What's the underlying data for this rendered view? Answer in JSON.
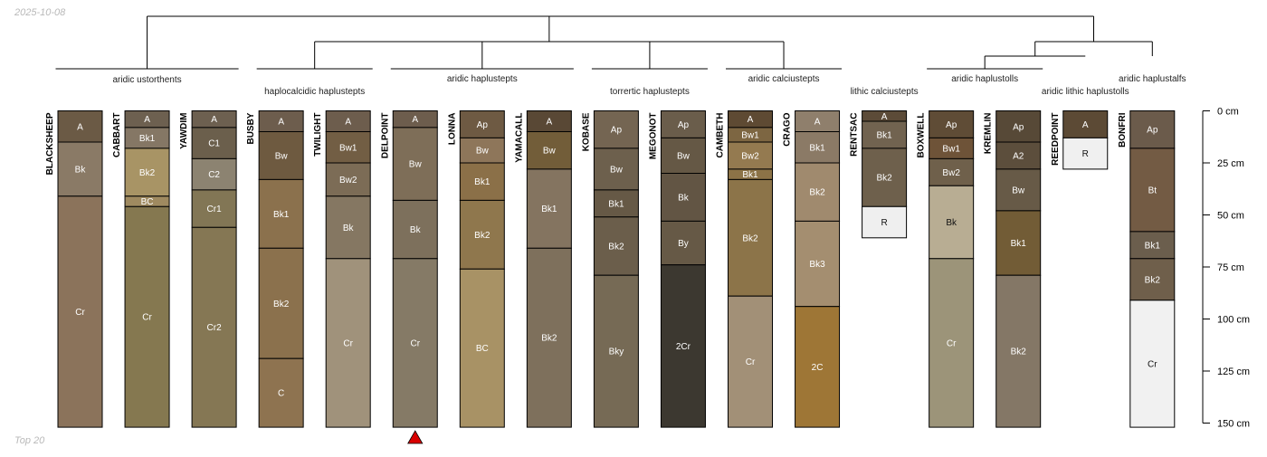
{
  "date_label": "2025-10-08",
  "footer_label": "Top 20",
  "depth_axis": {
    "unit": "cm",
    "max": 150,
    "ticks": [
      {
        "value": 0,
        "label": "0 cm"
      },
      {
        "value": 25,
        "label": "25 cm"
      },
      {
        "value": 50,
        "label": "50 cm"
      },
      {
        "value": 75,
        "label": "75 cm"
      },
      {
        "value": 100,
        "label": "100 cm"
      },
      {
        "value": 125,
        "label": "125 cm"
      },
      {
        "value": 150,
        "label": "150 cm"
      }
    ]
  },
  "marker": {
    "profile_index": 5,
    "shape": "triangle-up",
    "color": "#d90000"
  },
  "groups": [
    {
      "label": "aridic ustorthents",
      "members": [
        0,
        1,
        2
      ]
    },
    {
      "label": "haplocalcidic haplustepts",
      "members": [
        3,
        4
      ]
    },
    {
      "label": "aridic haplustepts",
      "members": [
        5,
        6,
        7
      ]
    },
    {
      "label": "torrertic haplustepts",
      "members": [
        8,
        9
      ]
    },
    {
      "label": "aridic calciustepts",
      "members": [
        10,
        11
      ]
    },
    {
      "label": "lithic calciustepts",
      "members": [
        12
      ]
    },
    {
      "label": "aridic haplustolls",
      "members": [
        13,
        14
      ]
    },
    {
      "label": "aridic lithic haplustolls",
      "members": [
        15
      ]
    },
    {
      "label": "aridic haplustalfs",
      "members": [
        16
      ]
    }
  ],
  "profiles": [
    {
      "name": "BLACKSHEEP",
      "horizons": [
        {
          "name": "A",
          "top": 0,
          "bottom": 15,
          "color": "#6b5a45"
        },
        {
          "name": "Bk",
          "top": 15,
          "bottom": 41,
          "color": "#8a7a66"
        },
        {
          "name": "Cr",
          "top": 41,
          "bottom": 152,
          "color": "#8b735b"
        }
      ]
    },
    {
      "name": "CABBART",
      "horizons": [
        {
          "name": "A",
          "top": 0,
          "bottom": 8,
          "color": "#6d6050"
        },
        {
          "name": "Bk1",
          "top": 8,
          "bottom": 18,
          "color": "#857765"
        },
        {
          "name": "Bk2",
          "top": 18,
          "bottom": 41,
          "color": "#a89465"
        },
        {
          "name": "BC",
          "top": 41,
          "bottom": 46,
          "color": "#9f8a60"
        },
        {
          "name": "Cr",
          "top": 46,
          "bottom": 152,
          "color": "#857850"
        }
      ]
    },
    {
      "name": "YAWDIM",
      "horizons": [
        {
          "name": "A",
          "top": 0,
          "bottom": 8,
          "color": "#6d6050"
        },
        {
          "name": "C1",
          "top": 8,
          "bottom": 23,
          "color": "#6b5f4c"
        },
        {
          "name": "C2",
          "top": 23,
          "bottom": 38,
          "color": "#8c8371"
        },
        {
          "name": "Cr1",
          "top": 38,
          "bottom": 56,
          "color": "#827655"
        },
        {
          "name": "Cr2",
          "top": 56,
          "bottom": 152,
          "color": "#857754"
        }
      ]
    },
    {
      "name": "BUSBY",
      "horizons": [
        {
          "name": "A",
          "top": 0,
          "bottom": 10,
          "color": "#6d5d4d"
        },
        {
          "name": "Bw",
          "top": 10,
          "bottom": 33,
          "color": "#6e5a40"
        },
        {
          "name": "Bk1",
          "top": 33,
          "bottom": 66,
          "color": "#8b714d"
        },
        {
          "name": "Bk2",
          "top": 66,
          "bottom": 119,
          "color": "#8b714d"
        },
        {
          "name": "C",
          "top": 119,
          "bottom": 152,
          "color": "#8e7350"
        }
      ]
    },
    {
      "name": "TWILIGHT",
      "horizons": [
        {
          "name": "A",
          "top": 0,
          "bottom": 10,
          "color": "#6d5d4d"
        },
        {
          "name": "Bw1",
          "top": 10,
          "bottom": 25,
          "color": "#725e44"
        },
        {
          "name": "Bw2",
          "top": 25,
          "bottom": 41,
          "color": "#7c6c56"
        },
        {
          "name": "Bk",
          "top": 41,
          "bottom": 71,
          "color": "#857762"
        },
        {
          "name": "Cr",
          "top": 71,
          "bottom": 152,
          "color": "#a0927b"
        }
      ]
    },
    {
      "name": "DELPOINT",
      "horizons": [
        {
          "name": "A",
          "top": 0,
          "bottom": 8,
          "color": "#6d5d4d"
        },
        {
          "name": "Bw",
          "top": 8,
          "bottom": 43,
          "color": "#7e6e58"
        },
        {
          "name": "Bk",
          "top": 43,
          "bottom": 71,
          "color": "#7d705c"
        },
        {
          "name": "Cr",
          "top": 71,
          "bottom": 152,
          "color": "#857a66"
        }
      ]
    },
    {
      "name": "LONNA",
      "horizons": [
        {
          "name": "Ap",
          "top": 0,
          "bottom": 13,
          "color": "#6e5a43"
        },
        {
          "name": "Bw",
          "top": 13,
          "bottom": 25,
          "color": "#8e765a"
        },
        {
          "name": "Bk1",
          "top": 25,
          "bottom": 43,
          "color": "#8b7048"
        },
        {
          "name": "Bk2",
          "top": 43,
          "bottom": 76,
          "color": "#8f774d"
        },
        {
          "name": "BC",
          "top": 76,
          "bottom": 152,
          "color": "#a89265"
        }
      ]
    },
    {
      "name": "YAMACALL",
      "horizons": [
        {
          "name": "A",
          "top": 0,
          "bottom": 10,
          "color": "#594835"
        },
        {
          "name": "Bw",
          "top": 10,
          "bottom": 28,
          "color": "#725d39"
        },
        {
          "name": "Bk1",
          "top": 28,
          "bottom": 66,
          "color": "#847460"
        },
        {
          "name": "Bk2",
          "top": 66,
          "bottom": 152,
          "color": "#7e705c"
        }
      ]
    },
    {
      "name": "KOBASE",
      "horizons": [
        {
          "name": "Ap",
          "top": 0,
          "bottom": 18,
          "color": "#746552"
        },
        {
          "name": "Bw",
          "top": 18,
          "bottom": 38,
          "color": "#6d604d"
        },
        {
          "name": "Bk1",
          "top": 38,
          "bottom": 51,
          "color": "#665946"
        },
        {
          "name": "Bk2",
          "top": 51,
          "bottom": 79,
          "color": "#6b5e4b"
        },
        {
          "name": "Bky",
          "top": 79,
          "bottom": 152,
          "color": "#766a55"
        }
      ]
    },
    {
      "name": "MEGONOT",
      "horizons": [
        {
          "name": "Ap",
          "top": 0,
          "bottom": 13,
          "color": "#6a5d4b"
        },
        {
          "name": "Bw",
          "top": 13,
          "bottom": 30,
          "color": "#655845"
        },
        {
          "name": "Bk",
          "top": 30,
          "bottom": 53,
          "color": "#625544"
        },
        {
          "name": "By",
          "top": 53,
          "bottom": 74,
          "color": "#665946"
        },
        {
          "name": "2Cr",
          "top": 74,
          "bottom": 152,
          "color": "#3c3830"
        }
      ]
    },
    {
      "name": "CAMBETH",
      "horizons": [
        {
          "name": "A",
          "top": 0,
          "bottom": 8,
          "color": "#5e4a33"
        },
        {
          "name": "Bw1",
          "top": 8,
          "bottom": 15,
          "color": "#7d6642"
        },
        {
          "name": "Bw2",
          "top": 15,
          "bottom": 28,
          "color": "#947a50"
        },
        {
          "name": "Bk1",
          "top": 28,
          "bottom": 33,
          "color": "#8c7347"
        },
        {
          "name": "Bk2",
          "top": 33,
          "bottom": 89,
          "color": "#8c7449"
        },
        {
          "name": "Cr",
          "top": 89,
          "bottom": 152,
          "color": "#a29077"
        }
      ]
    },
    {
      "name": "CRAGO",
      "horizons": [
        {
          "name": "A",
          "top": 0,
          "bottom": 10,
          "color": "#8f7f6c"
        },
        {
          "name": "Bk1",
          "top": 10,
          "bottom": 25,
          "color": "#8b7a66"
        },
        {
          "name": "Bk2",
          "top": 25,
          "bottom": 53,
          "color": "#a08a6e"
        },
        {
          "name": "Bk3",
          "top": 53,
          "bottom": 94,
          "color": "#a48e70"
        },
        {
          "name": "2C",
          "top": 94,
          "bottom": 152,
          "color": "#9e7636"
        }
      ]
    },
    {
      "name": "RENTSAC",
      "horizons": [
        {
          "name": "A",
          "top": 0,
          "bottom": 5,
          "color": "#5c4b38"
        },
        {
          "name": "Bk1",
          "top": 5,
          "bottom": 18,
          "color": "#716350"
        },
        {
          "name": "Bk2",
          "top": 18,
          "bottom": 46,
          "color": "#6e604c"
        },
        {
          "name": "R",
          "top": 46,
          "bottom": 61,
          "color": "#efefef"
        }
      ]
    },
    {
      "name": "BOXWELL",
      "horizons": [
        {
          "name": "Ap",
          "top": 0,
          "bottom": 13,
          "color": "#5f4c36"
        },
        {
          "name": "Bw1",
          "top": 13,
          "bottom": 23,
          "color": "#6e5338"
        },
        {
          "name": "Bw2",
          "top": 23,
          "bottom": 36,
          "color": "#6f604b"
        },
        {
          "name": "Bk",
          "top": 36,
          "bottom": 71,
          "color": "#b8ad93"
        },
        {
          "name": "Cr",
          "top": 71,
          "bottom": 152,
          "color": "#9c9479"
        }
      ]
    },
    {
      "name": "KREMLIN",
      "horizons": [
        {
          "name": "Ap",
          "top": 0,
          "bottom": 15,
          "color": "#574937"
        },
        {
          "name": "A2",
          "top": 15,
          "bottom": 28,
          "color": "#5c4e3c"
        },
        {
          "name": "Bw",
          "top": 28,
          "bottom": 48,
          "color": "#675a47"
        },
        {
          "name": "Bk1",
          "top": 48,
          "bottom": 79,
          "color": "#725c36"
        },
        {
          "name": "Bk2",
          "top": 79,
          "bottom": 152,
          "color": "#847766"
        }
      ]
    },
    {
      "name": "REEDPOINT",
      "horizons": [
        {
          "name": "A",
          "top": 0,
          "bottom": 13,
          "color": "#5c4a35"
        },
        {
          "name": "R",
          "top": 13,
          "bottom": 28,
          "color": "#f0f0f0"
        }
      ]
    },
    {
      "name": "BONFRI",
      "horizons": [
        {
          "name": "Ap",
          "top": 0,
          "bottom": 18,
          "color": "#6b5b4b"
        },
        {
          "name": "Bt",
          "top": 18,
          "bottom": 58,
          "color": "#735b44"
        },
        {
          "name": "Bk1",
          "top": 58,
          "bottom": 71,
          "color": "#6b5e4d"
        },
        {
          "name": "Bk2",
          "top": 71,
          "bottom": 91,
          "color": "#6f5f4b"
        },
        {
          "name": "Cr",
          "top": 91,
          "bottom": 152,
          "color": "#f1f1f1"
        }
      ]
    }
  ]
}
